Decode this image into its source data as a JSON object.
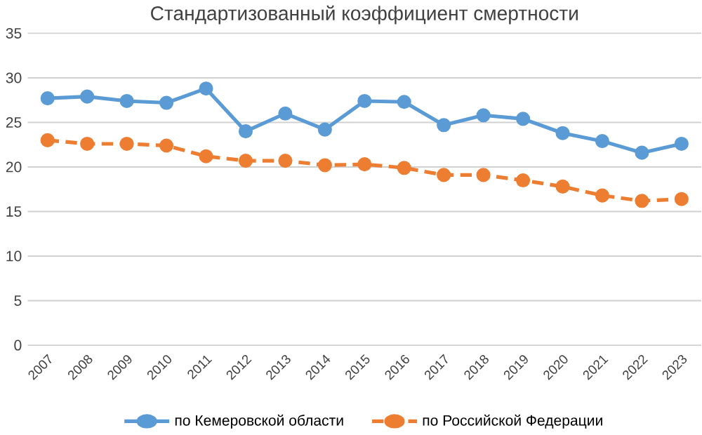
{
  "chart_data": {
    "type": "line",
    "title": "Стандартизованный коэффициент смертности",
    "categories": [
      "2007",
      "2008",
      "2009",
      "2010",
      "2011",
      "2012",
      "2013",
      "2014",
      "2015",
      "2016",
      "2017",
      "2018",
      "2019",
      "2020",
      "2021",
      "2022",
      "2023"
    ],
    "series": [
      {
        "name": "по Кемеровской области",
        "color": "#5b9bd5",
        "line_style": "solid",
        "values": [
          27.7,
          27.9,
          27.4,
          27.2,
          28.8,
          24.0,
          26.0,
          24.2,
          27.4,
          27.3,
          24.7,
          25.8,
          25.4,
          23.8,
          22.9,
          21.6,
          22.6
        ]
      },
      {
        "name": "по Российской Федерации",
        "color": "#ed7d31",
        "line_style": "dashed",
        "values": [
          23.0,
          22.6,
          22.6,
          22.4,
          21.2,
          20.7,
          20.7,
          20.2,
          20.3,
          19.9,
          19.1,
          19.1,
          18.5,
          17.8,
          16.8,
          16.2,
          16.4
        ]
      }
    ],
    "ylim": [
      0,
      35
    ],
    "yticks": [
      0,
      5,
      10,
      15,
      20,
      25,
      30,
      35
    ],
    "grid": "y",
    "legend": "bottom",
    "marker": "circle"
  }
}
